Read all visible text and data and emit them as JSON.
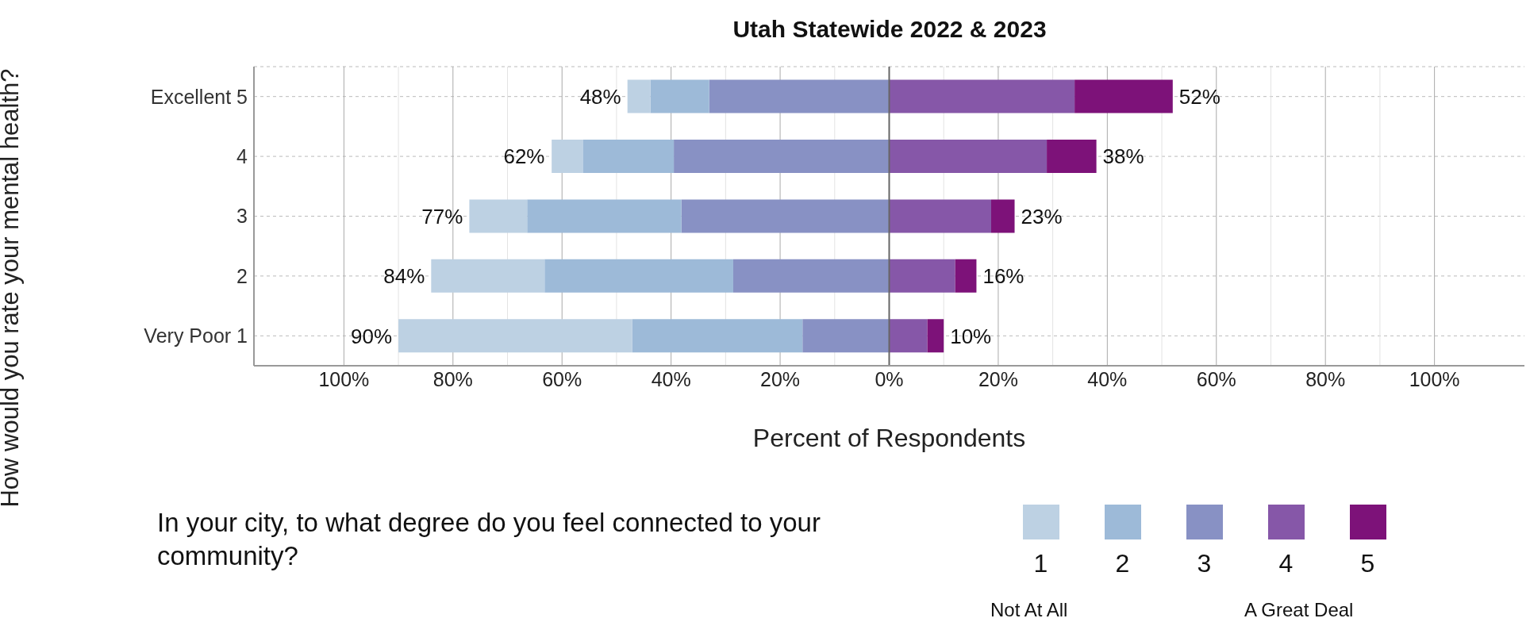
{
  "chart_data": {
    "type": "bar",
    "orientation": "horizontal",
    "stacked": true,
    "title": "Utah Statewide 2022 & 2023",
    "xlabel": "Percent of Respondents",
    "ylabel": "How would you rate your mental health?",
    "legend_title": "In your city, to what degree do you feel connected to your community?",
    "categories": [
      "Excellent 5",
      "4",
      "3",
      "2",
      "Very Poor 1"
    ],
    "series": [
      {
        "name": "1",
        "color": "#bdd1e3",
        "values": [
          -4.2,
          -5.7,
          -10.6,
          -20.8,
          -42.9
        ]
      },
      {
        "name": "2",
        "color": "#9dbad8",
        "values": [
          -10.8,
          -16.7,
          -28.3,
          -34.6,
          -31.2
        ]
      },
      {
        "name": "3",
        "color": "#8891c4",
        "values": [
          -33,
          -39.5,
          -38.1,
          -28.6,
          -15.9
        ]
      },
      {
        "name": "4",
        "color": "#8657a8",
        "values": [
          34,
          28.9,
          18.7,
          12.1,
          7
        ]
      },
      {
        "name": "5",
        "color": "#7d1279",
        "values": [
          18,
          9.1,
          4.3,
          3.9,
          3
        ]
      }
    ],
    "xlim": [
      -116.5,
      116.5
    ],
    "xticks": [
      {
        "value": -100,
        "label": "100%"
      },
      {
        "value": -90,
        "label": null
      },
      {
        "value": -80,
        "label": "80%"
      },
      {
        "value": -70,
        "label": null
      },
      {
        "value": -60,
        "label": "60%"
      },
      {
        "value": -50,
        "label": null
      },
      {
        "value": -40,
        "label": "40%"
      },
      {
        "value": -30,
        "label": null
      },
      {
        "value": -20,
        "label": "20%"
      },
      {
        "value": -10,
        "label": null
      },
      {
        "value": 0,
        "label": "0%"
      },
      {
        "value": 10,
        "label": null
      },
      {
        "value": 20,
        "label": "20%"
      },
      {
        "value": 30,
        "label": null
      },
      {
        "value": 40,
        "label": "40%"
      },
      {
        "value": 50,
        "label": null
      },
      {
        "value": 60,
        "label": "60%"
      },
      {
        "value": 70,
        "label": null
      },
      {
        "value": 80,
        "label": "80%"
      },
      {
        "value": 90,
        "label": null
      },
      {
        "value": 100,
        "label": "100%"
      }
    ],
    "ref_lines": [
      {
        "axis": "x",
        "value": 0,
        "color": "#666666"
      }
    ],
    "grid": true,
    "legend": "bottom",
    "annotations": [
      {
        "text": "48%",
        "x": -48,
        "y": "Excellent 5"
      },
      {
        "text": "62%",
        "x": -62,
        "y": "4"
      },
      {
        "text": "77%",
        "x": -77,
        "y": "3"
      },
      {
        "text": "84%",
        "x": -84,
        "y": "2"
      },
      {
        "text": "90%",
        "x": -90,
        "y": "Very Poor 1"
      },
      {
        "text": "52%",
        "x": 52,
        "y": "Excellent 5"
      },
      {
        "text": "38%",
        "x": 38,
        "y": "4"
      },
      {
        "text": "23%",
        "x": 23,
        "y": "3"
      },
      {
        "text": "16%",
        "x": 16,
        "y": "2"
      },
      {
        "text": "10%",
        "x": 10,
        "y": "Very Poor 1"
      },
      "Not At All",
      "A Great Deal"
    ]
  }
}
